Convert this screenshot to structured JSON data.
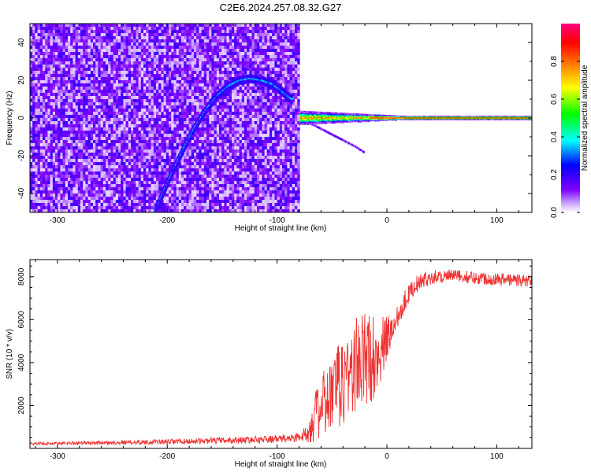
{
  "chart_data": [
    {
      "type": "heatmap",
      "title": "C2E6.2024.257.08.32.G27",
      "xlabel": "Height of straight line (km)",
      "ylabel": "Frequency (Hz)",
      "xlim": [
        -325,
        132
      ],
      "ylim": [
        -50,
        50
      ],
      "x_ticks": [
        -300,
        -200,
        -100,
        0,
        100
      ],
      "x_tick_labels": [
        "-300",
        "-200",
        "-100",
        "0",
        "100"
      ],
      "y_ticks": [
        -40,
        -20,
        0,
        20,
        40
      ],
      "y_tick_labels": [
        "-40",
        "-20",
        "0",
        "20",
        "40"
      ],
      "colorbar": {
        "label": "Normalized spectral amplitude",
        "range": [
          0,
          1
        ],
        "ticks": [
          0.0,
          0.2,
          0.4,
          0.6,
          0.8
        ],
        "tick_labels": [
          "0.0",
          "0.2",
          "0.4",
          "0.6",
          "0.8"
        ],
        "colormap": [
          "#ffffff",
          "#7f00ff",
          "#0000ff",
          "#00ffff",
          "#00ff00",
          "#ffff00",
          "#ff8000",
          "#ff0000",
          "#ff0080"
        ]
      },
      "features": {
        "noise_region_x": [
          -325,
          -80
        ],
        "arc_curve": {
          "x": [
            -212,
            -205,
            -195,
            -185,
            -175,
            -165,
            -155,
            -145,
            -135,
            -125,
            -115,
            -105,
            -98,
            -92,
            -87
          ],
          "y": [
            -49,
            -40,
            -27,
            -15,
            -4,
            5,
            12,
            17,
            20,
            21,
            20,
            18,
            15,
            12,
            10
          ]
        },
        "main_band": {
          "x": [
            -80,
            132
          ],
          "y": 0
        },
        "weak_branch": {
          "x": [
            -70,
            -60,
            -50,
            -40,
            -30,
            -22
          ],
          "y": [
            -3,
            -6,
            -9,
            -12,
            -15,
            -18
          ]
        }
      }
    },
    {
      "type": "line",
      "xlabel": "Height of straight line (km)",
      "ylabel": "SNR (10 * v/v)",
      "xlim": [
        -325,
        132
      ],
      "ylim": [
        0,
        8800
      ],
      "x_ticks": [
        -300,
        -200,
        -100,
        0,
        100
      ],
      "x_tick_labels": [
        "-300",
        "-200",
        "-100",
        "0",
        "100"
      ],
      "y_ticks": [
        2000,
        4000,
        6000,
        8000
      ],
      "y_tick_labels": [
        "2000",
        "4000",
        "6000",
        "8000"
      ],
      "series_color": "#ee3333",
      "envelope": {
        "x": [
          -325,
          -300,
          -250,
          -200,
          -150,
          -110,
          -85,
          -75,
          -65,
          -55,
          -45,
          -35,
          -25,
          -15,
          -5,
          5,
          15,
          25,
          40,
          60,
          80,
          100,
          132
        ],
        "mean": [
          220,
          240,
          270,
          310,
          360,
          420,
          480,
          600,
          1500,
          2200,
          2800,
          3500,
          4000,
          4200,
          4600,
          5600,
          6800,
          7600,
          8000,
          8050,
          7950,
          7900,
          7800
        ],
        "amp": [
          60,
          70,
          90,
          120,
          150,
          170,
          200,
          350,
          1200,
          1700,
          2000,
          2300,
          2400,
          2200,
          1500,
          800,
          500,
          400,
          350,
          300,
          300,
          300,
          300
        ]
      }
    }
  ]
}
